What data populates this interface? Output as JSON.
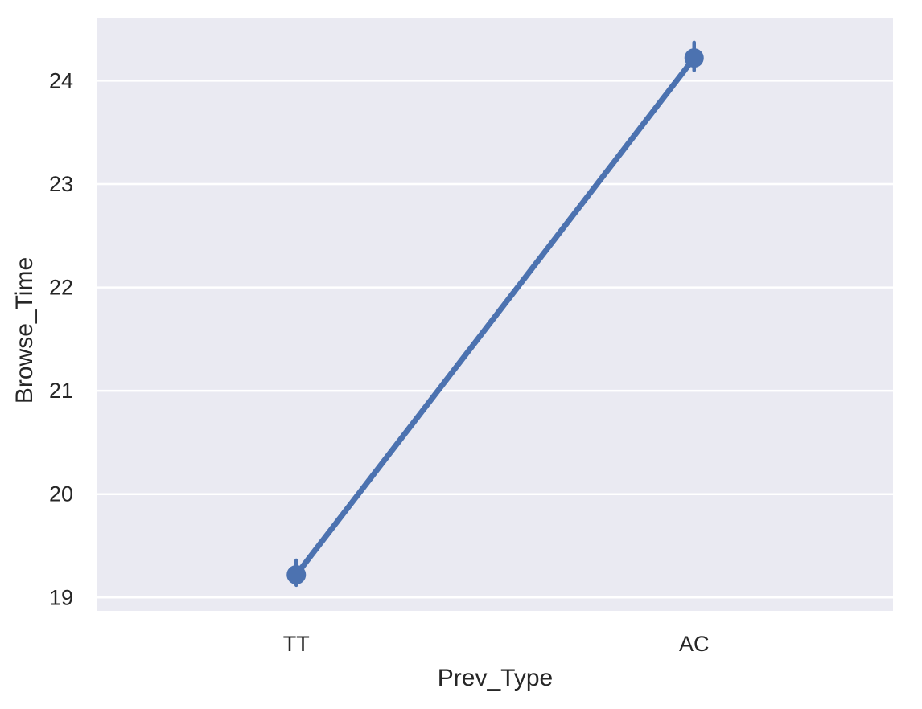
{
  "chart_data": {
    "type": "line",
    "xlabel": "Prev_Type",
    "ylabel": "Browse_Time",
    "categories": [
      "TT",
      "AC"
    ],
    "series": [
      {
        "values": [
          19.22,
          24.22
        ],
        "error_low": [
          19.12,
          24.1
        ],
        "error_high": [
          19.36,
          24.37
        ]
      }
    ],
    "yticks": [
      19,
      20,
      21,
      22,
      23,
      24
    ],
    "ylim": [
      18.87,
      24.61
    ],
    "grid": true,
    "background": "#EAEAF2",
    "grid_color": "#FFFFFF",
    "series_color": "#4C72B0",
    "text_color": "#262626"
  }
}
